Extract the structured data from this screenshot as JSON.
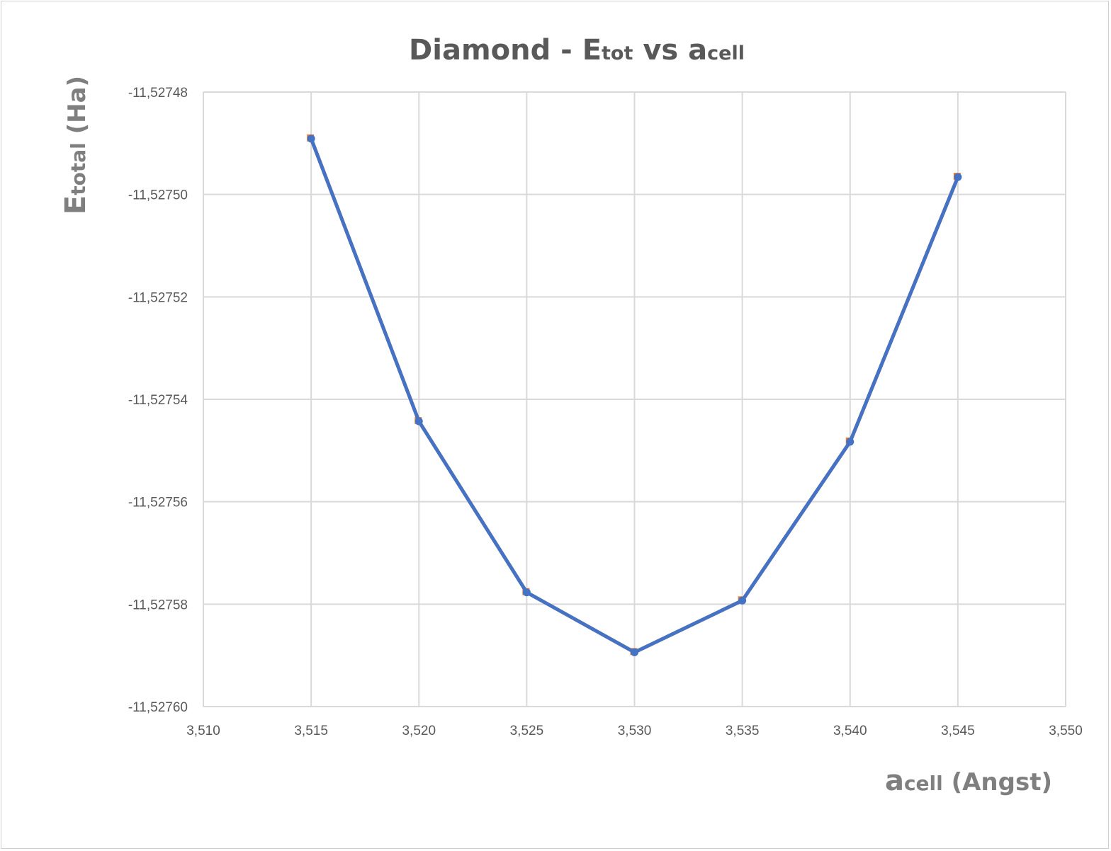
{
  "chart_data": {
    "type": "line",
    "title": {
      "main": "Diamond - ",
      "e": "E",
      "e_sub": "tot",
      "vs": " vs ",
      "a": "a",
      "a_sub": "cell"
    },
    "xlabel": {
      "main": "a",
      "sub": "cell",
      "rest": " (Angst)"
    },
    "ylabel": {
      "main": "E",
      "sub": "total",
      "rest": " (Ha)"
    },
    "xlim": [
      3.51,
      3.55
    ],
    "ylim": [
      -11.5276,
      -11.52748
    ],
    "x_ticks": [
      "3,510",
      "3,515",
      "3,520",
      "3,525",
      "3,530",
      "3,535",
      "3,540",
      "3,545",
      "3,550"
    ],
    "y_ticks": [
      "-11,52748",
      "-11,52750",
      "-11,52752",
      "-11,52754",
      "-11,52756",
      "-11,52758",
      "-11,52760"
    ],
    "grid": true,
    "x": [
      3.515,
      3.52,
      3.525,
      3.53,
      3.535,
      3.54,
      3.545
    ],
    "series": [
      {
        "color": "#ED7D31",
        "marker": "square",
        "values": [
          -11.5274891,
          -11.5275443,
          -11.5275777,
          -11.5275894,
          -11.5275793,
          -11.5275483,
          -11.5274966
        ]
      },
      {
        "color": "#4472C4",
        "marker": "circle",
        "values": [
          -11.5274891,
          -11.5275443,
          -11.5275777,
          -11.5275894,
          -11.5275793,
          -11.5275483,
          -11.5274966
        ]
      }
    ]
  }
}
